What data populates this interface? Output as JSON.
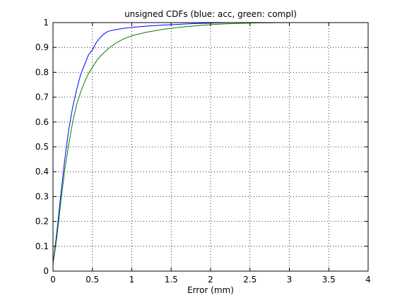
{
  "chart_data": {
    "type": "line",
    "title": "unsigned CDFs (blue: acc, green: compl)",
    "xlabel": "Error (mm)",
    "ylabel": "",
    "xlim": [
      0,
      4
    ],
    "ylim": [
      0,
      1
    ],
    "xticks": [
      "0",
      "0.5",
      "1",
      "1.5",
      "2",
      "2.5",
      "3",
      "3.5",
      "4"
    ],
    "yticks": [
      "0",
      "0.1",
      "0.2",
      "0.3",
      "0.4",
      "0.5",
      "0.6",
      "0.7",
      "0.8",
      "0.9",
      "1"
    ],
    "grid": true,
    "series": [
      {
        "color": "#0000ff",
        "x": [
          0,
          0.02,
          0.05,
          0.1,
          0.15,
          0.2,
          0.25,
          0.3,
          0.35,
          0.4,
          0.45,
          0.5,
          0.55,
          0.6,
          0.65,
          0.7,
          0.8,
          0.9,
          1.0,
          1.2,
          1.4,
          1.6,
          1.8,
          2.0,
          2.1,
          2.2,
          2.25
        ],
        "y": [
          0.03,
          0.08,
          0.16,
          0.31,
          0.45,
          0.57,
          0.66,
          0.73,
          0.79,
          0.83,
          0.87,
          0.89,
          0.92,
          0.94,
          0.955,
          0.965,
          0.972,
          0.977,
          0.981,
          0.986,
          0.99,
          0.993,
          0.996,
          0.998,
          0.999,
          0.9995,
          1.0
        ]
      },
      {
        "color": "#008000",
        "x": [
          0,
          0.02,
          0.05,
          0.1,
          0.15,
          0.2,
          0.25,
          0.3,
          0.35,
          0.4,
          0.45,
          0.5,
          0.55,
          0.6,
          0.65,
          0.7,
          0.8,
          0.9,
          1.0,
          1.1,
          1.2,
          1.4,
          1.6,
          1.8,
          2.0,
          2.2,
          2.4,
          2.6,
          3.0,
          3.5,
          4.0
        ],
        "y": [
          0.03,
          0.07,
          0.14,
          0.28,
          0.41,
          0.51,
          0.6,
          0.67,
          0.72,
          0.76,
          0.795,
          0.82,
          0.845,
          0.865,
          0.88,
          0.895,
          0.918,
          0.935,
          0.947,
          0.955,
          0.962,
          0.973,
          0.981,
          0.987,
          0.992,
          0.995,
          0.997,
          0.999,
          1.0,
          1.0,
          1.0
        ]
      }
    ]
  }
}
